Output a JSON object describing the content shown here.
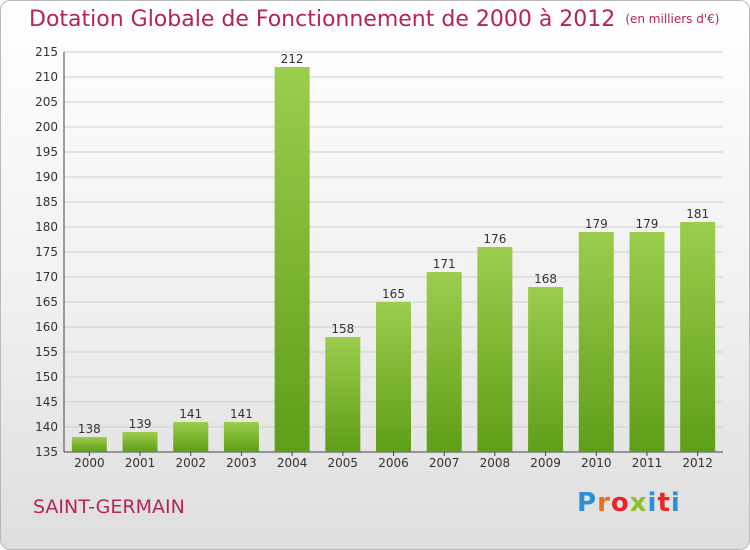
{
  "title": "Dotation Globale de Fonctionnement de 2000 à 2012",
  "unit_note": "(en milliers d'€)",
  "commune": "SAINT-GERMAIN",
  "logo_text": "Proxiti",
  "colors": {
    "title": "#b4245a",
    "bar_light": "#9ccd4e",
    "bar_dark": "#5e9e18",
    "grid": "#cfcfcf",
    "logo": [
      "#2f8fd5",
      "#e8701a",
      "#e5262a",
      "#8bc22b",
      "#2f8fd5",
      "#e5262a",
      "#2f8fd5"
    ]
  },
  "chart_data": {
    "type": "bar",
    "title": "Dotation Globale de Fonctionnement de 2000 à 2012",
    "categories": [
      "2000",
      "2001",
      "2002",
      "2003",
      "2004",
      "2005",
      "2006",
      "2007",
      "2008",
      "2009",
      "2010",
      "2011",
      "2012"
    ],
    "values": [
      138,
      139,
      141,
      141,
      212,
      158,
      165,
      171,
      176,
      168,
      179,
      179,
      181
    ],
    "ylim": [
      135,
      215
    ],
    "yticks": [
      135,
      140,
      145,
      150,
      155,
      160,
      165,
      170,
      175,
      180,
      185,
      190,
      195,
      200,
      205,
      210,
      215
    ],
    "grid": true,
    "data_labels": true
  }
}
